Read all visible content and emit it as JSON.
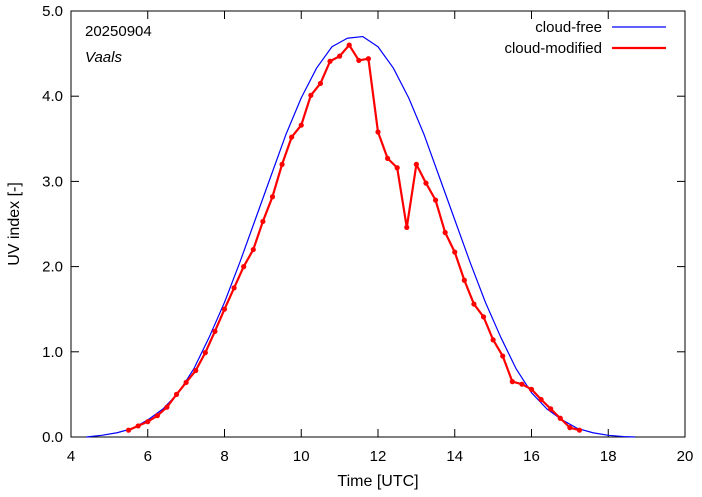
{
  "chart_data": {
    "type": "line",
    "annotations": {
      "date": "20250904",
      "location": "Vaals"
    },
    "xlabel": "Time  [UTC]",
    "ylabel": "UV index  [-]",
    "xlim": [
      4,
      20
    ],
    "ylim": [
      0,
      5
    ],
    "xticks": [
      4,
      6,
      8,
      10,
      12,
      14,
      16,
      18,
      20
    ],
    "xtick_labels": [
      "4",
      "6",
      "8",
      "10",
      "12",
      "14",
      "16",
      "18",
      "20"
    ],
    "yticks": [
      0,
      1,
      2,
      3,
      4,
      5
    ],
    "ytick_labels": [
      "0.0",
      "1.0",
      "2.0",
      "3.0",
      "4.0",
      "5.0"
    ],
    "grid": false,
    "legend_position": "top-right",
    "colors": {
      "cloud_free": "#0000ff",
      "cloud_modified": "#ff0000"
    },
    "series": [
      {
        "name": "cloud-free",
        "style": "line",
        "x": [
          4.4,
          4.8,
          5.2,
          5.6,
          6.0,
          6.4,
          6.8,
          7.2,
          7.6,
          8.0,
          8.4,
          8.8,
          9.2,
          9.6,
          10.0,
          10.4,
          10.8,
          11.2,
          11.6,
          12.0,
          12.4,
          12.8,
          13.2,
          13.6,
          14.0,
          14.4,
          14.8,
          15.2,
          15.6,
          16.0,
          16.4,
          16.8,
          17.2,
          17.6,
          18.0,
          18.4,
          18.7
        ],
        "y": [
          0.0,
          0.02,
          0.05,
          0.1,
          0.2,
          0.33,
          0.52,
          0.8,
          1.17,
          1.58,
          2.05,
          2.55,
          3.05,
          3.55,
          3.98,
          4.33,
          4.58,
          4.68,
          4.7,
          4.58,
          4.33,
          3.98,
          3.55,
          3.05,
          2.55,
          2.05,
          1.58,
          1.17,
          0.8,
          0.52,
          0.33,
          0.2,
          0.1,
          0.05,
          0.02,
          0.005,
          0.0
        ]
      },
      {
        "name": "cloud-modified",
        "style": "line+points",
        "x": [
          5.5,
          5.75,
          6.0,
          6.25,
          6.5,
          6.75,
          7.0,
          7.25,
          7.5,
          7.75,
          8.0,
          8.25,
          8.5,
          8.75,
          9.0,
          9.25,
          9.5,
          9.75,
          10.0,
          10.25,
          10.5,
          10.75,
          11.0,
          11.25,
          11.5,
          11.75,
          12.0,
          12.25,
          12.5,
          12.75,
          13.0,
          13.25,
          13.5,
          13.75,
          14.0,
          14.25,
          14.5,
          14.75,
          15.0,
          15.25,
          15.5,
          15.75,
          16.0,
          16.25,
          16.5,
          16.75,
          17.0,
          17.25
        ],
        "y": [
          0.08,
          0.13,
          0.18,
          0.25,
          0.35,
          0.5,
          0.64,
          0.78,
          0.99,
          1.24,
          1.5,
          1.75,
          2.0,
          2.2,
          2.53,
          2.82,
          3.2,
          3.52,
          3.66,
          4.01,
          4.15,
          4.41,
          4.47,
          4.6,
          4.42,
          4.44,
          3.58,
          3.27,
          3.16,
          2.46,
          3.2,
          2.98,
          2.78,
          2.4,
          2.17,
          1.84,
          1.56,
          1.41,
          1.14,
          0.95,
          0.65,
          0.62,
          0.56,
          0.44,
          0.33,
          0.22,
          0.11,
          0.08
        ]
      }
    ]
  }
}
